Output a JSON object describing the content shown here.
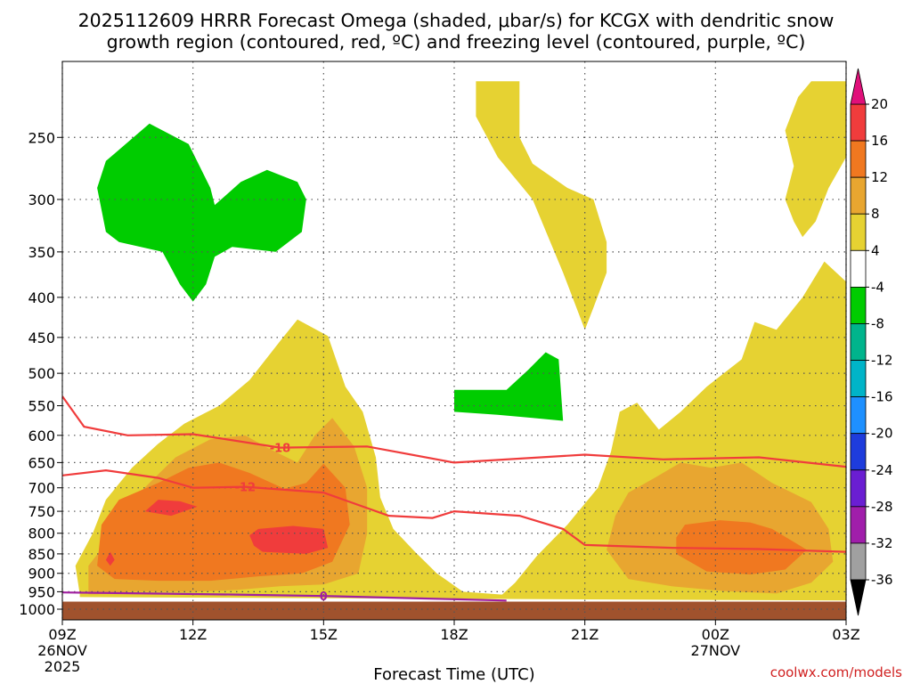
{
  "chart_data": {
    "type": "heatmap",
    "title_line1": "2025112609 HRRR Forecast Omega (shaded, μbar/s) for KCGX with dendritic snow",
    "title_line2": "growth region (contoured, red, ºC) and freezing level (contoured, purple, ºC)",
    "xlabel": "Forecast Time (UTC)",
    "ylabel": "",
    "credit": "coolwx.com/models",
    "x_ticks": [
      {
        "t": 0,
        "label": "09Z",
        "sub1": "26NOV",
        "sub2": "2025"
      },
      {
        "t": 3,
        "label": "12Z",
        "sub1": "",
        "sub2": ""
      },
      {
        "t": 6,
        "label": "15Z",
        "sub1": "",
        "sub2": ""
      },
      {
        "t": 9,
        "label": "18Z",
        "sub1": "",
        "sub2": ""
      },
      {
        "t": 12,
        "label": "21Z",
        "sub1": "",
        "sub2": ""
      },
      {
        "t": 15,
        "label": "00Z",
        "sub1": "27NOV",
        "sub2": ""
      },
      {
        "t": 18,
        "label": "03Z",
        "sub1": "",
        "sub2": ""
      }
    ],
    "y_ticks": [
      250,
      300,
      350,
      400,
      450,
      500,
      550,
      600,
      650,
      700,
      750,
      800,
      850,
      900,
      950,
      1000
    ],
    "ylim": [
      200,
      1000
    ],
    "xlim": [
      0,
      18
    ],
    "y_scale": "log-pressure (inverted)",
    "grid": true,
    "colorbar": {
      "ticks": [
        "20",
        "16",
        "12",
        "8",
        "4",
        "-4",
        "-8",
        "-12",
        "-16",
        "-20",
        "-24",
        "-28",
        "-32",
        "-36"
      ],
      "colors": [
        "#f03c3c",
        "#f07820",
        "#e8a630",
        "#e6d232",
        "#ffffff",
        "#00cc00",
        "#00b48c",
        "#00b4c8",
        "#1e90ff",
        "#1e3cdc",
        "#6a1ed2",
        "#a01eaa",
        "#a0a0a0"
      ],
      "top_color": "#e0107a",
      "bottom_color": "#000000"
    },
    "ground": {
      "color": "#a0522d",
      "from_hpa": 978
    },
    "filled_regions": [
      {
        "level": "4 to 8",
        "color": "#e6d232",
        "points": [
          [
            0.4,
            957
          ],
          [
            0.3,
            880
          ],
          [
            0.7,
            800
          ],
          [
            1.0,
            725
          ],
          [
            1.6,
            660
          ],
          [
            2.2,
            615
          ],
          [
            2.8,
            580
          ],
          [
            3.6,
            550
          ],
          [
            4.3,
            510
          ],
          [
            5.0,
            455
          ],
          [
            5.4,
            427
          ],
          [
            6.1,
            448
          ],
          [
            6.5,
            520
          ],
          [
            6.9,
            560
          ],
          [
            7.2,
            640
          ],
          [
            7.3,
            720
          ],
          [
            7.6,
            790
          ],
          [
            8.1,
            845
          ],
          [
            8.6,
            900
          ],
          [
            9.2,
            950
          ],
          [
            10.1,
            958
          ],
          [
            10.4,
            925
          ],
          [
            10.9,
            855
          ],
          [
            11.6,
            780
          ],
          [
            12.3,
            700
          ],
          [
            12.6,
            630
          ],
          [
            12.8,
            560
          ],
          [
            13.2,
            545
          ],
          [
            13.7,
            590
          ],
          [
            14.2,
            560
          ],
          [
            14.8,
            520
          ],
          [
            15.6,
            480
          ],
          [
            15.9,
            430
          ],
          [
            16.4,
            440
          ],
          [
            17.0,
            400
          ],
          [
            17.5,
            360
          ],
          [
            18.0,
            382
          ],
          [
            18.0,
            975
          ],
          [
            0.4,
            965
          ]
        ]
      },
      {
        "level": "4 to 8 (upper)",
        "color": "#e6d232",
        "points": [
          [
            9.5,
            212
          ],
          [
            10.5,
            212
          ],
          [
            10.5,
            250
          ],
          [
            10.8,
            270
          ],
          [
            11.6,
            290
          ],
          [
            12.2,
            300
          ],
          [
            12.5,
            340
          ],
          [
            12.5,
            372
          ],
          [
            12.2,
            412
          ],
          [
            12.0,
            440
          ],
          [
            11.5,
            372
          ],
          [
            10.8,
            300
          ],
          [
            10.0,
            265
          ],
          [
            9.5,
            235
          ]
        ]
      },
      {
        "level": "4 to 8 (upper right)",
        "color": "#e6d232",
        "points": [
          [
            16.6,
            245
          ],
          [
            16.9,
            222
          ],
          [
            17.2,
            212
          ],
          [
            17.5,
            212
          ],
          [
            18.0,
            212
          ],
          [
            18.0,
            265
          ],
          [
            17.6,
            290
          ],
          [
            17.3,
            320
          ],
          [
            17.0,
            335
          ],
          [
            16.8,
            320
          ],
          [
            16.6,
            300
          ],
          [
            16.8,
            272
          ]
        ]
      },
      {
        "level": "8 to 12",
        "color": "#e8a630",
        "points": [
          [
            0.6,
            957
          ],
          [
            0.6,
            880
          ],
          [
            1.1,
            810
          ],
          [
            1.4,
            745
          ],
          [
            2.0,
            690
          ],
          [
            2.6,
            640
          ],
          [
            3.4,
            607
          ],
          [
            4.2,
            600
          ],
          [
            4.7,
            622
          ],
          [
            5.4,
            650
          ],
          [
            5.8,
            600
          ],
          [
            6.2,
            570
          ],
          [
            6.7,
            620
          ],
          [
            7.0,
            700
          ],
          [
            7.0,
            800
          ],
          [
            6.8,
            900
          ],
          [
            6.0,
            930
          ],
          [
            5.0,
            935
          ],
          [
            4.0,
            945
          ],
          [
            3.0,
            950
          ],
          [
            1.6,
            950
          ],
          [
            0.8,
            957
          ]
        ]
      },
      {
        "level": "8 to 12 (right)",
        "color": "#e8a630",
        "points": [
          [
            12.5,
            840
          ],
          [
            12.7,
            760
          ],
          [
            13.0,
            710
          ],
          [
            13.6,
            680
          ],
          [
            14.2,
            650
          ],
          [
            14.9,
            660
          ],
          [
            15.6,
            650
          ],
          [
            16.3,
            690
          ],
          [
            17.2,
            730
          ],
          [
            17.6,
            790
          ],
          [
            17.7,
            870
          ],
          [
            17.2,
            925
          ],
          [
            16.4,
            955
          ],
          [
            15.2,
            948
          ],
          [
            14.0,
            935
          ],
          [
            13.0,
            915
          ]
        ]
      },
      {
        "level": "12 to 16",
        "color": "#f07820",
        "points": [
          [
            0.8,
            880
          ],
          [
            0.9,
            780
          ],
          [
            1.3,
            725
          ],
          [
            2.2,
            690
          ],
          [
            2.9,
            660
          ],
          [
            3.6,
            650
          ],
          [
            4.3,
            670
          ],
          [
            5.1,
            702
          ],
          [
            5.6,
            690
          ],
          [
            6.0,
            652
          ],
          [
            6.5,
            700
          ],
          [
            6.6,
            780
          ],
          [
            6.2,
            870
          ],
          [
            5.5,
            900
          ],
          [
            4.5,
            908
          ],
          [
            3.4,
            920
          ],
          [
            2.2,
            920
          ],
          [
            1.2,
            915
          ]
        ]
      },
      {
        "level": "12 to 16 (right)",
        "color": "#f07820",
        "points": [
          [
            14.1,
            810
          ],
          [
            14.3,
            780
          ],
          [
            15.1,
            770
          ],
          [
            15.8,
            775
          ],
          [
            16.3,
            790
          ],
          [
            17.1,
            840
          ],
          [
            16.6,
            890
          ],
          [
            15.8,
            903
          ],
          [
            14.8,
            895
          ],
          [
            14.1,
            850
          ]
        ]
      },
      {
        "level": "16 to 20",
        "color": "#f03c3c",
        "points": [
          [
            1.9,
            750
          ],
          [
            2.2,
            725
          ],
          [
            2.7,
            728
          ],
          [
            3.1,
            740
          ],
          [
            2.5,
            760
          ]
        ]
      },
      {
        "level": "16 to 20 (center)",
        "color": "#f03c3c",
        "points": [
          [
            4.3,
            805
          ],
          [
            4.5,
            790
          ],
          [
            5.3,
            783
          ],
          [
            6.0,
            790
          ],
          [
            6.1,
            835
          ],
          [
            5.6,
            850
          ],
          [
            4.6,
            845
          ],
          [
            4.4,
            830
          ]
        ]
      },
      {
        "level": "16 to 20 (small)",
        "color": "#f03c3c",
        "points": [
          [
            1.0,
            865
          ],
          [
            1.1,
            845
          ],
          [
            1.2,
            865
          ],
          [
            1.1,
            880
          ]
        ]
      },
      {
        "level": "-8 to -4",
        "color": "#00cc00",
        "points": [
          [
            0.8,
            290
          ],
          [
            1.0,
            268
          ],
          [
            2.0,
            240
          ],
          [
            2.9,
            255
          ],
          [
            3.4,
            290
          ],
          [
            3.5,
            305
          ],
          [
            4.1,
            285
          ],
          [
            4.7,
            275
          ],
          [
            5.4,
            285
          ],
          [
            5.6,
            300
          ],
          [
            5.5,
            330
          ],
          [
            4.9,
            350
          ],
          [
            3.9,
            345
          ],
          [
            3.5,
            355
          ],
          [
            3.3,
            385
          ],
          [
            3.0,
            405
          ],
          [
            2.7,
            385
          ],
          [
            2.3,
            350
          ],
          [
            1.3,
            340
          ],
          [
            1.0,
            330
          ]
        ]
      },
      {
        "level": "-8 to -4 (mid)",
        "color": "#00cc00",
        "points": [
          [
            9.0,
            560
          ],
          [
            9.0,
            525
          ],
          [
            10.2,
            525
          ],
          [
            10.7,
            495
          ],
          [
            11.1,
            470
          ],
          [
            11.4,
            480
          ],
          [
            11.5,
            575
          ],
          [
            10.8,
            570
          ],
          [
            10.0,
            565
          ]
        ]
      }
    ],
    "contour_lines": [
      {
        "label": "-18",
        "color": "#f03c3c",
        "label_at": [
          5.0,
          622
        ],
        "points": [
          [
            0.0,
            535
          ],
          [
            0.5,
            585
          ],
          [
            1.5,
            600
          ],
          [
            3.0,
            598
          ],
          [
            5.0,
            622
          ],
          [
            7.0,
            620
          ],
          [
            9.0,
            650
          ],
          [
            12.0,
            635
          ],
          [
            13.8,
            644
          ],
          [
            16.0,
            640
          ],
          [
            18.0,
            658
          ]
        ]
      },
      {
        "label": "-12",
        "color": "#f03c3c",
        "label_at": [
          4.2,
          698
        ],
        "points": [
          [
            0.0,
            675
          ],
          [
            1.0,
            665
          ],
          [
            2.2,
            680
          ],
          [
            3.0,
            700
          ],
          [
            4.2,
            698
          ],
          [
            6.0,
            710
          ],
          [
            7.5,
            760
          ],
          [
            8.5,
            765
          ],
          [
            9.0,
            750
          ],
          [
            10.5,
            760
          ],
          [
            11.5,
            790
          ],
          [
            12.0,
            828
          ],
          [
            14.0,
            835
          ],
          [
            16.0,
            838
          ],
          [
            18.0,
            845
          ]
        ]
      },
      {
        "label": "0",
        "color": "#a020a0",
        "label_at": [
          6.0,
          962
        ],
        "points": [
          [
            0.0,
            952
          ],
          [
            2.0,
            955
          ],
          [
            4.0,
            958
          ],
          [
            6.0,
            962
          ],
          [
            8.0,
            968
          ],
          [
            10.2,
            975
          ]
        ]
      }
    ]
  }
}
